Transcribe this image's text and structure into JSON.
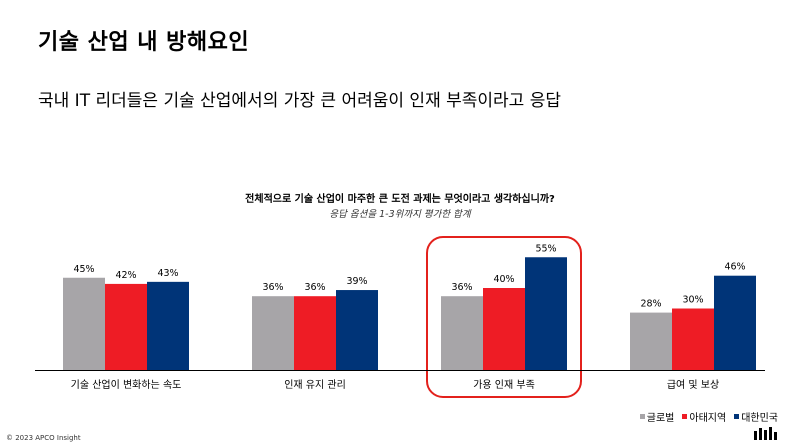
{
  "title": "기술 산업 내 방해요인",
  "subtitle": "국내 IT 리더들은 기술 산업에서의 가장 큰 어려움이 인재 부족이라고 응답",
  "chart_question": "전체적으로 기술 산업이 마주한 큰 도전 과제는 무엇이라고 생각하십니까?",
  "chart_note": "응답 옵션을 1-3위까지 평가한 합계",
  "chart_data": {
    "type": "bar",
    "categories": [
      "기술 산업이 변화하는 속도",
      "인재 유지 관리",
      "가용 인재 부족",
      "급여 및 보상"
    ],
    "series": [
      {
        "name": "글로벌",
        "values": [
          45,
          36,
          36,
          28
        ],
        "color": "#a7a5a8"
      },
      {
        "name": "아태지역",
        "values": [
          42,
          36,
          40,
          30
        ],
        "color": "#ee1c25"
      },
      {
        "name": "대한민국",
        "values": [
          43,
          39,
          55,
          46
        ],
        "color": "#003478"
      }
    ],
    "value_suffix": "%",
    "highlight_category": "가용 인재 부족",
    "highlight_color": "#e3211c",
    "ylim": [
      0,
      60
    ],
    "legend_position": "bottom-right"
  },
  "legend": {
    "marker": "■",
    "items": [
      {
        "label": "글로벌",
        "color": "#a7a5a8"
      },
      {
        "label": "아태지역",
        "color": "#ee1c25"
      },
      {
        "label": "대한민국",
        "color": "#003478"
      }
    ]
  },
  "footer": {
    "copyright": "© 2023 APCO Insight"
  }
}
